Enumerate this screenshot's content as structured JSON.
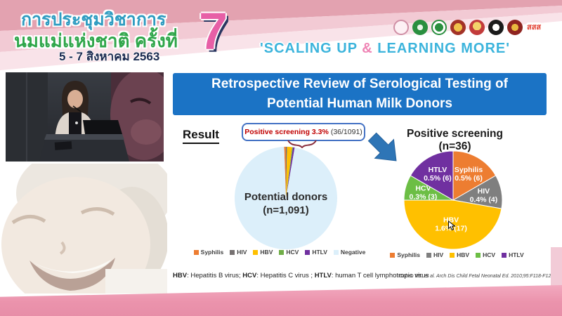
{
  "header": {
    "title_line1": "การประชุมวิชาการ",
    "title_line2": "นมแม่แห่งชาติ ครั้งที่",
    "date_line": "5 - 7 สิงหาคม 2563",
    "edition_number": "7",
    "slogan": {
      "part1": "'SCALING UP ",
      "amp": "&",
      "part2": " LEARNING MORE'"
    },
    "logos": [
      {
        "name": "breastfeeding-foundation-logo",
        "text": ""
      },
      {
        "name": "ministry-public-health-logo",
        "text": ""
      },
      {
        "name": "department-of-health-logo",
        "text": ""
      },
      {
        "name": "royal-college-logo",
        "text": ""
      },
      {
        "name": "university-emblem-logo",
        "text": ""
      },
      {
        "name": "medical-council-logo",
        "text": ""
      },
      {
        "name": "pediatric-society-logo",
        "text": ""
      },
      {
        "name": "thai-health-logo",
        "text": "สสส"
      }
    ]
  },
  "slide": {
    "title": "Retrospective Review of Serological Testing of Potential Human Milk Donors",
    "result_label": "Result",
    "badge": {
      "highlight": "Positive screening 3.3%",
      "detail": "(36/1091)"
    },
    "footnote": {
      "hbv_abbr": "HBV",
      "hbv_text": ": Hepatitis B virus; ",
      "hcv_abbr": "HCV",
      "hcv_text": ": Hepatitis C virus ; ",
      "htlv_abbr": "HTLV",
      "htlv_text": ": human T cell lymphotropic virus"
    },
    "citation": "Cohen RS, et al. Arch Dis Child Fetal Neonatal Ed. 2010;95:F118-F120."
  },
  "chart_data": [
    {
      "type": "pie",
      "title": "Potential donors (n=1,091)",
      "center_label_line1": "Potential donors",
      "center_label_line2": "(n=1,091)",
      "categories": [
        "Syphilis",
        "HIV",
        "HBV",
        "HCV",
        "HTLV",
        "Negative"
      ],
      "values": [
        6,
        4,
        17,
        3,
        6,
        1055
      ],
      "colors": [
        "#ED7D31",
        "#767171",
        "#FFC000",
        "#70AD47",
        "#7030A0",
        "#DCEFFA"
      ],
      "legend_position": "bottom",
      "rotation_deg": -2
    },
    {
      "type": "pie",
      "title": "Positive screening (n=36)",
      "categories": [
        "Syphilis",
        "HIV",
        "HBV",
        "HCV",
        "HTLV"
      ],
      "values": [
        6,
        4,
        17,
        3,
        6
      ],
      "slice_labels": [
        [
          "Syphilis",
          "0.5% (6)"
        ],
        [
          "HIV",
          "0.4% (4)"
        ],
        [
          "HBV",
          "1.6% (17)"
        ],
        [
          "HCV",
          "0.3% (3)"
        ],
        [
          "HTLV",
          "0.5% (6)"
        ]
      ],
      "colors": [
        "#ED7D31",
        "#7F7F7F",
        "#FFC000",
        "#6CBE45",
        "#7030A0"
      ],
      "legend_position": "bottom",
      "rotation_deg": 0
    }
  ]
}
